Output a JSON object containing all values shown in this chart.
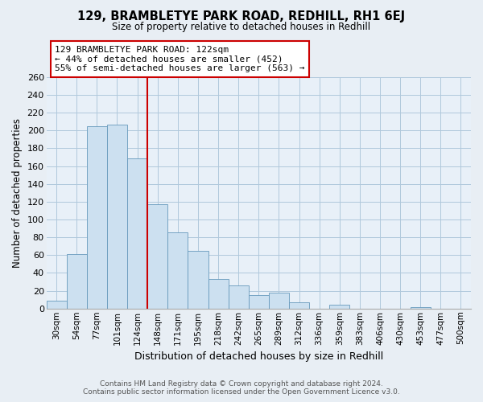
{
  "title": "129, BRAMBLETYE PARK ROAD, REDHILL, RH1 6EJ",
  "subtitle": "Size of property relative to detached houses in Redhill",
  "xlabel": "Distribution of detached houses by size in Redhill",
  "ylabel": "Number of detached properties",
  "bar_labels": [
    "30sqm",
    "54sqm",
    "77sqm",
    "101sqm",
    "124sqm",
    "148sqm",
    "171sqm",
    "195sqm",
    "218sqm",
    "242sqm",
    "265sqm",
    "289sqm",
    "312sqm",
    "336sqm",
    "359sqm",
    "383sqm",
    "406sqm",
    "430sqm",
    "453sqm",
    "477sqm",
    "500sqm"
  ],
  "bar_values": [
    9,
    61,
    205,
    207,
    169,
    117,
    86,
    65,
    33,
    26,
    15,
    18,
    7,
    0,
    4,
    0,
    0,
    0,
    2,
    0,
    0
  ],
  "bar_color": "#cce0f0",
  "bar_edge_color": "#6699bb",
  "annotation_line1": "129 BRAMBLETYE PARK ROAD: 122sqm",
  "annotation_line2": "← 44% of detached houses are smaller (452)",
  "annotation_line3": "55% of semi-detached houses are larger (563) →",
  "annotation_box_color": "#ffffff",
  "annotation_box_edge": "#cc0000",
  "vline_color": "#cc0000",
  "vline_x_index": 4,
  "ylim_max": 260,
  "yticks": [
    0,
    20,
    40,
    60,
    80,
    100,
    120,
    140,
    160,
    180,
    200,
    220,
    240,
    260
  ],
  "footer_line1": "Contains HM Land Registry data © Crown copyright and database right 2024.",
  "footer_line2": "Contains public sector information licensed under the Open Government Licence v3.0.",
  "background_color": "#e8eef4",
  "plot_bg_color": "#e8f0f8",
  "grid_color": "#b0c8dc"
}
